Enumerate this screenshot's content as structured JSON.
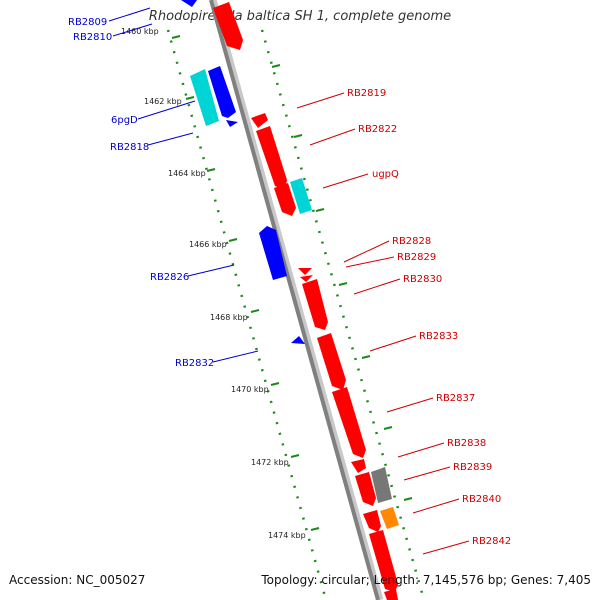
{
  "title": "Rhodopirellula baltica SH 1, complete genome",
  "footer": {
    "accession": "Accession: NC_005027",
    "summary": "Topology: circular; Length: 7,145,576 bp; Genes: 7,405"
  },
  "colors": {
    "backbone": "#808080",
    "forward": "#ff0000",
    "reverse": "#0000ff",
    "rna": "#00d5d5",
    "other_gray": "#777777",
    "other_orange": "#ff8800",
    "track_dots": "#1a8a1a",
    "label_left": "#0000cc",
    "label_right": "#cc0000"
  },
  "ticks": [
    {
      "label": "1460 kbp"
    },
    {
      "label": "1462 kbp"
    },
    {
      "label": "1464 kbp"
    },
    {
      "label": "1466 kbp"
    },
    {
      "label": "1468 kbp"
    },
    {
      "label": "1470 kbp"
    },
    {
      "label": "1472 kbp"
    },
    {
      "label": "1474 kbp"
    }
  ],
  "labels_left": [
    {
      "text": "RB2809"
    },
    {
      "text": "RB2810"
    },
    {
      "text": "6pgD"
    },
    {
      "text": "RB2818"
    },
    {
      "text": "RB2826"
    },
    {
      "text": "RB2832"
    }
  ],
  "labels_right": [
    {
      "text": "RB2819"
    },
    {
      "text": "RB2822"
    },
    {
      "text": "ugpQ"
    },
    {
      "text": "RB2828"
    },
    {
      "text": "RB2829"
    },
    {
      "text": "RB2830"
    },
    {
      "text": "RB2833"
    },
    {
      "text": "RB2837"
    },
    {
      "text": "RB2838"
    },
    {
      "text": "RB2839"
    },
    {
      "text": "RB2840"
    },
    {
      "text": "RB2842"
    }
  ]
}
